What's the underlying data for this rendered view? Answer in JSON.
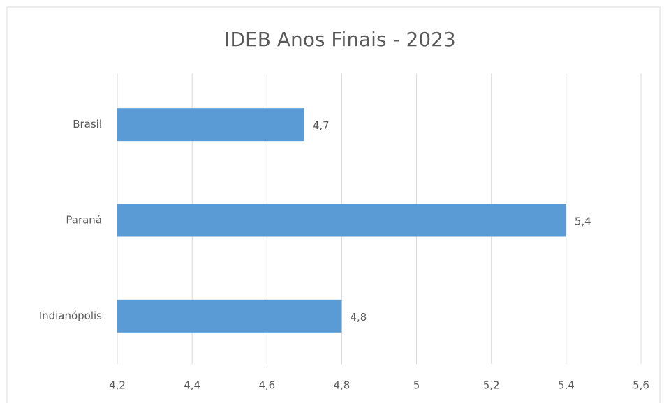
{
  "chart_data": {
    "type": "bar",
    "orientation": "horizontal",
    "title": "IDEB Anos Finais - 2023",
    "categories": [
      "Brasil",
      "Paraná",
      "Indianópolis"
    ],
    "values": [
      4.7,
      5.4,
      4.8
    ],
    "value_labels": [
      "4,7",
      "5,4",
      "4,8"
    ],
    "color": "#5b9bd5",
    "xlim": [
      4.2,
      5.6
    ],
    "xticks": [
      {
        "value": 4.2,
        "label": "4,2"
      },
      {
        "value": 4.4,
        "label": "4,4"
      },
      {
        "value": 4.6,
        "label": "4,6"
      },
      {
        "value": 4.8,
        "label": "4,8"
      },
      5,
      {
        "value": 5.2,
        "label": "5,2"
      },
      {
        "value": 5.4,
        "label": "5,4"
      },
      {
        "value": 5.6,
        "label": "5,6"
      }
    ],
    "grid": true
  }
}
